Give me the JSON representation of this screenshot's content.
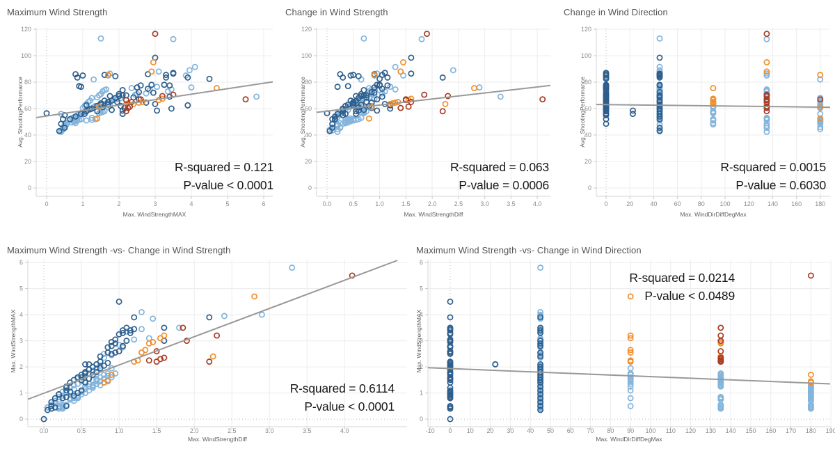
{
  "palette": {
    "lb": "#82B4DC",
    "db": "#2E5E8C",
    "o": "#F28E2B",
    "r": "#A83C24",
    "trend": "#999999",
    "grid": "#ECECEC",
    "axis": "#D4D4D4",
    "tick_mark": "#C9C9C9",
    "tick_text": "#8A8A8A",
    "zero_line": "#B9B9B9"
  },
  "record_fields": [
    "wsmax",
    "wsdiff",
    "dirdiff",
    "perf",
    "color"
  ],
  "records": [
    [
      0,
      0,
      0,
      56.5,
      "db"
    ],
    [
      0.4,
      0.1,
      0,
      48.5,
      "db"
    ],
    [
      0.45,
      0.15,
      0,
      52,
      "db"
    ],
    [
      0.5,
      0.3,
      0,
      55,
      "db"
    ],
    [
      0.8,
      0.25,
      0,
      86,
      "db"
    ],
    [
      0.85,
      0.3,
      0,
      83.5,
      "db"
    ],
    [
      0.9,
      0.4,
      0,
      77,
      "db"
    ],
    [
      0.95,
      0.2,
      0,
      76.5,
      "db"
    ],
    [
      1,
      0.45,
      0,
      85,
      "db"
    ],
    [
      1.05,
      0.35,
      0,
      56,
      "db"
    ],
    [
      1.1,
      0.5,
      0,
      62.5,
      "db"
    ],
    [
      1.2,
      0.3,
      0,
      59.5,
      "db"
    ],
    [
      1.4,
      0.55,
      0,
      58,
      "db"
    ],
    [
      1.5,
      0.5,
      0,
      64,
      "db"
    ],
    [
      1.55,
      0.6,
      0,
      61,
      "db"
    ],
    [
      1.6,
      0.45,
      0,
      66,
      "db"
    ],
    [
      1.7,
      0.65,
      0,
      63,
      "db"
    ],
    [
      1.75,
      0.55,
      0,
      69.5,
      "db"
    ],
    [
      1.8,
      0.7,
      0,
      59,
      "db"
    ],
    [
      1.9,
      0.6,
      0,
      68,
      "db"
    ],
    [
      1.95,
      0.75,
      0,
      65,
      "db"
    ],
    [
      2,
      0.65,
      0,
      71,
      "db"
    ],
    [
      2.05,
      0.8,
      0,
      62,
      "db"
    ],
    [
      2.1,
      0.7,
      0,
      74,
      "db"
    ],
    [
      2.15,
      0.85,
      0,
      60.5,
      "db"
    ],
    [
      2.2,
      0.75,
      0,
      70,
      "db"
    ],
    [
      2.5,
      0.9,
      0,
      76,
      "db"
    ],
    [
      2.55,
      0.95,
      0,
      67,
      "db"
    ],
    [
      2.6,
      1,
      0,
      77.5,
      "db"
    ],
    [
      2.75,
      0.85,
      0,
      64.5,
      "db"
    ],
    [
      2.8,
      1.05,
      0,
      75,
      "db"
    ],
    [
      2.95,
      0.9,
      0,
      72,
      "db"
    ],
    [
      3,
      1.1,
      0,
      63.5,
      "db"
    ],
    [
      3.05,
      0.95,
      0,
      58.5,
      "db"
    ],
    [
      3.25,
      1,
      0,
      78,
      "db"
    ],
    [
      3.3,
      1.15,
      0,
      83.5,
      "db"
    ],
    [
      3.4,
      1.05,
      0,
      69,
      "db"
    ],
    [
      3.45,
      1.2,
      0,
      60,
      "db"
    ],
    [
      3.5,
      1.1,
      0,
      87,
      "db"
    ],
    [
      3.9,
      1.2,
      0,
      62.5,
      "db"
    ],
    [
      4.5,
      1,
      0,
      82.5,
      "db"
    ],
    [
      2.1,
      0.6,
      22.5,
      58.5,
      "db"
    ],
    [
      2.1,
      0.55,
      22.5,
      56,
      "db"
    ],
    [
      5.8,
      3.3,
      45,
      69,
      "lb"
    ],
    [
      1.5,
      0.7,
      45,
      113,
      "lb"
    ],
    [
      4.1,
      1.3,
      45,
      91.5,
      "lb"
    ],
    [
      4,
      2.9,
      45,
      76,
      "lb"
    ],
    [
      3.95,
      2.4,
      45,
      89,
      "lb"
    ],
    [
      3.9,
      2.2,
      45,
      83.5,
      "db"
    ],
    [
      3.85,
      1.45,
      45,
      85,
      "lb"
    ],
    [
      3.5,
      1.6,
      45,
      86.5,
      "db"
    ],
    [
      3.45,
      1.3,
      45,
      74.5,
      "lb"
    ],
    [
      3.4,
      1.15,
      45,
      77.5,
      "db"
    ],
    [
      3.35,
      1.1,
      45,
      73,
      "lb"
    ],
    [
      3.3,
      1.05,
      45,
      85.5,
      "db"
    ],
    [
      3.1,
      1.4,
      45,
      88,
      "lb"
    ],
    [
      3.05,
      1.2,
      45,
      76.5,
      "lb"
    ],
    [
      3,
      1.6,
      45,
      98.5,
      "db"
    ],
    [
      2.9,
      0.95,
      45,
      78,
      "db"
    ],
    [
      2.85,
      1,
      45,
      74,
      "lb"
    ],
    [
      2.8,
      0.9,
      45,
      86,
      "db"
    ],
    [
      2.75,
      1.05,
      45,
      71.5,
      "lb"
    ],
    [
      2.55,
      0.85,
      45,
      72.5,
      "db"
    ],
    [
      2.5,
      0.8,
      45,
      71,
      "lb"
    ],
    [
      2.45,
      0.9,
      45,
      70.5,
      "lb"
    ],
    [
      2.4,
      0.75,
      45,
      68.5,
      "db"
    ],
    [
      2.35,
      0.8,
      45,
      75.5,
      "lb"
    ],
    [
      2.1,
      0.7,
      45,
      70,
      "db"
    ],
    [
      2.05,
      0.75,
      45,
      68,
      "lb"
    ],
    [
      2,
      0.65,
      45,
      69.5,
      "db"
    ],
    [
      1.95,
      0.7,
      45,
      67.5,
      "lb"
    ],
    [
      1.9,
      0.6,
      45,
      84.5,
      "db"
    ],
    [
      1.85,
      0.65,
      45,
      67,
      "lb"
    ],
    [
      1.8,
      0.55,
      45,
      66,
      "db"
    ],
    [
      1.75,
      0.6,
      45,
      65.5,
      "lb"
    ],
    [
      1.7,
      0.5,
      45,
      65,
      "db"
    ],
    [
      1.65,
      0.55,
      45,
      64,
      "lb"
    ],
    [
      1.6,
      0.5,
      45,
      85.5,
      "db"
    ],
    [
      1.55,
      0.45,
      45,
      63.5,
      "lb"
    ],
    [
      1.5,
      0.4,
      45,
      63,
      "db"
    ],
    [
      1.45,
      0.5,
      45,
      62.5,
      "lb"
    ],
    [
      1.4,
      0.35,
      45,
      62,
      "db"
    ],
    [
      1.35,
      0.45,
      45,
      61.5,
      "lb"
    ],
    [
      1.3,
      0.4,
      45,
      61,
      "lb"
    ],
    [
      1.25,
      0.3,
      45,
      60,
      "db"
    ],
    [
      1.2,
      0.35,
      45,
      59.5,
      "lb"
    ],
    [
      1.15,
      0.4,
      45,
      59,
      "lb"
    ],
    [
      1.1,
      0.3,
      45,
      58,
      "db"
    ],
    [
      1.05,
      0.25,
      45,
      57.5,
      "lb"
    ],
    [
      1,
      0.3,
      45,
      57,
      "lb"
    ],
    [
      0.95,
      0.2,
      45,
      56,
      "db"
    ],
    [
      0.9,
      0.25,
      45,
      55.5,
      "lb"
    ],
    [
      0.85,
      0.2,
      45,
      55,
      "lb"
    ],
    [
      0.8,
      0.15,
      45,
      54,
      "db"
    ],
    [
      0.75,
      0.2,
      45,
      53.5,
      "lb"
    ],
    [
      0.7,
      0.15,
      45,
      53,
      "lb"
    ],
    [
      0.65,
      0.1,
      45,
      52,
      "db"
    ],
    [
      0.6,
      0.15,
      45,
      51,
      "lb"
    ],
    [
      0.55,
      0.1,
      45,
      48,
      "lb"
    ],
    [
      0.5,
      0.1,
      45,
      45.5,
      "db"
    ],
    [
      0.45,
      0.05,
      45,
      44,
      "lb"
    ],
    [
      0.4,
      0.1,
      45,
      43.5,
      "lb"
    ],
    [
      0.35,
      0.05,
      45,
      43,
      "db"
    ],
    [
      4.7,
      2.8,
      90,
      75.5,
      "o"
    ],
    [
      3.2,
      1.6,
      90,
      67.5,
      "o"
    ],
    [
      3.1,
      1.55,
      90,
      66.5,
      "o"
    ],
    [
      2.65,
      1.35,
      90,
      65,
      "o"
    ],
    [
      2.55,
      1.3,
      90,
      64.5,
      "o"
    ],
    [
      2.25,
      1.25,
      90,
      64,
      "o"
    ],
    [
      2.2,
      1.2,
      90,
      63.5,
      "o"
    ],
    [
      1.95,
      0.9,
      90,
      67,
      "lb"
    ],
    [
      1.75,
      0.85,
      90,
      62,
      "lb"
    ],
    [
      1.7,
      0.8,
      90,
      61,
      "lb"
    ],
    [
      1.6,
      0.75,
      90,
      58,
      "lb"
    ],
    [
      1.55,
      0.7,
      90,
      57.5,
      "lb"
    ],
    [
      1.5,
      0.65,
      90,
      57,
      "lb"
    ],
    [
      1.45,
      0.7,
      90,
      56.5,
      "lb"
    ],
    [
      1.35,
      0.6,
      90,
      52,
      "lb"
    ],
    [
      1.25,
      0.55,
      90,
      51.5,
      "lb"
    ],
    [
      1.1,
      0.5,
      90,
      51,
      "lb"
    ],
    [
      0.8,
      0.35,
      90,
      49,
      "lb"
    ],
    [
      0.5,
      0.2,
      90,
      48,
      "lb"
    ],
    [
      3,
      1.9,
      135,
      116.5,
      "r"
    ],
    [
      3.5,
      1.8,
      135,
      112.5,
      "lb"
    ],
    [
      2.95,
      1.45,
      135,
      95,
      "o"
    ],
    [
      3.5,
      1.85,
      135,
      70.5,
      "r"
    ],
    [
      3.2,
      2.3,
      135,
      69.5,
      "r"
    ],
    [
      2.6,
      1.5,
      135,
      67,
      "r"
    ],
    [
      2.35,
      1.6,
      135,
      65,
      "r"
    ],
    [
      2.3,
      1.55,
      135,
      61.5,
      "r"
    ],
    [
      2.25,
      1.4,
      135,
      60.5,
      "r"
    ],
    [
      2.2,
      2.2,
      135,
      58,
      "r"
    ],
    [
      2.2,
      1.5,
      135,
      66.5,
      "r"
    ],
    [
      2.9,
      1.4,
      135,
      88,
      "o"
    ],
    [
      2.4,
      2.25,
      135,
      63.5,
      "o"
    ],
    [
      1.75,
      0.95,
      135,
      86.5,
      "lb"
    ],
    [
      1.7,
      0.9,
      135,
      85,
      "lb"
    ],
    [
      1.65,
      0.85,
      135,
      74.5,
      "lb"
    ],
    [
      1.6,
      0.9,
      135,
      74,
      "lb"
    ],
    [
      1.55,
      0.8,
      135,
      73,
      "lb"
    ],
    [
      1.5,
      0.85,
      135,
      71,
      "lb"
    ],
    [
      1.45,
      0.75,
      135,
      70,
      "lb"
    ],
    [
      1.4,
      0.8,
      135,
      68.5,
      "lb"
    ],
    [
      1.35,
      0.7,
      135,
      62,
      "lb"
    ],
    [
      1.3,
      0.75,
      135,
      61,
      "lb"
    ],
    [
      1.25,
      0.65,
      135,
      53,
      "lb"
    ],
    [
      0.85,
      0.45,
      135,
      52.5,
      "lb"
    ],
    [
      0.8,
      0.4,
      135,
      52,
      "lb"
    ],
    [
      0.75,
      0.35,
      135,
      51.5,
      "lb"
    ],
    [
      0.55,
      0.25,
      135,
      49,
      "lb"
    ],
    [
      0.5,
      0.2,
      135,
      47,
      "lb"
    ],
    [
      0.45,
      0.25,
      135,
      45.5,
      "lb"
    ],
    [
      0.4,
      0.2,
      135,
      42.5,
      "lb"
    ],
    [
      5.5,
      4.1,
      180,
      67,
      "r"
    ],
    [
      1.7,
      0.9,
      180,
      85.5,
      "o"
    ],
    [
      1.45,
      0.85,
      180,
      61,
      "o"
    ],
    [
      1.4,
      0.8,
      180,
      52.5,
      "o"
    ],
    [
      1.3,
      0.65,
      180,
      82,
      "lb"
    ],
    [
      1.25,
      0.6,
      180,
      68,
      "lb"
    ],
    [
      1.2,
      0.65,
      180,
      66,
      "lb"
    ],
    [
      1.15,
      0.55,
      180,
      65,
      "lb"
    ],
    [
      1.1,
      0.6,
      180,
      63.5,
      "lb"
    ],
    [
      1.05,
      0.5,
      180,
      62,
      "lb"
    ],
    [
      1,
      0.55,
      180,
      60.5,
      "lb"
    ],
    [
      0.95,
      0.5,
      180,
      52,
      "lb"
    ],
    [
      0.9,
      0.45,
      180,
      51.5,
      "lb"
    ],
    [
      0.85,
      0.4,
      180,
      51,
      "lb"
    ],
    [
      0.8,
      0.45,
      180,
      50.5,
      "lb"
    ],
    [
      0.75,
      0.35,
      180,
      50,
      "lb"
    ],
    [
      0.7,
      0.4,
      180,
      49.5,
      "lb"
    ],
    [
      0.55,
      0.3,
      180,
      48.5,
      "lb"
    ],
    [
      0.5,
      0.25,
      180,
      46,
      "lb"
    ],
    [
      0.45,
      0.2,
      180,
      44.5,
      "lb"
    ],
    [
      0.4,
      0.25,
      180,
      56,
      "lb"
    ]
  ],
  "chart_data": [
    {
      "type": "scatter",
      "title": "Maximum Wind Strength",
      "xlabel": "Max. WindStrengthMAX",
      "ylabel": "Avg. ShootingPerformance",
      "x_field": "wsmax",
      "y_field": "perf",
      "xlim": [
        -0.288,
        6.25
      ],
      "ylim": [
        -6.3,
        121.05
      ],
      "xticks": {
        "values": [
          0,
          1,
          2,
          3,
          4,
          5,
          6
        ],
        "labels": [
          "0",
          "1",
          "2",
          "3",
          "4",
          "5",
          "6"
        ]
      },
      "yticks": {
        "values": [
          0,
          20,
          40,
          60,
          80,
          100,
          120
        ],
        "labels": [
          "0",
          "20",
          "40",
          "60",
          "80",
          "100",
          "120"
        ]
      },
      "grid": true,
      "zero_lines": {
        "x": true,
        "y": false
      },
      "trend": {
        "x1": -0.288,
        "y1": 53.2,
        "x2": 6.25,
        "y2": 80.2
      },
      "annotation": {
        "r_squared": "0.121",
        "p_value": "0.0001",
        "line1": "R-squared = 0.121",
        "line2": "P-value < 0.0001"
      }
    },
    {
      "type": "scatter",
      "title": "Change in Wind Strength",
      "xlabel": "Max. WindStrengthDiff",
      "ylabel": "Avg. ShootingPerformance",
      "x_field": "wsdiff",
      "y_field": "perf",
      "xlim": [
        -0.199,
        4.25
      ],
      "ylim": [
        -6.3,
        121.05
      ],
      "xticks": {
        "values": [
          0,
          0.5,
          1,
          1.5,
          2,
          2.5,
          3,
          3.5,
          4
        ],
        "labels": [
          "0.0",
          "0.5",
          "1.0",
          "1.5",
          "2.0",
          "2.5",
          "3.0",
          "3.5",
          "4.0"
        ]
      },
      "yticks": {
        "values": [
          0,
          20,
          40,
          60,
          80,
          100,
          120
        ],
        "labels": [
          "0",
          "20",
          "40",
          "60",
          "80",
          "100",
          "120"
        ]
      },
      "grid": true,
      "zero_lines": {
        "x": true,
        "y": false
      },
      "trend": {
        "x1": -0.199,
        "y1": 57.2,
        "x2": 4.25,
        "y2": 77.5
      },
      "annotation": {
        "r_squared": "0.063",
        "p_value": "0.0006",
        "line1": "R-squared = 0.063",
        "line2": "P-value = 0.0006"
      }
    },
    {
      "type": "scatter",
      "title": "Change in Wind Direction",
      "xlabel": "Max. WindDirDiffDegMax",
      "ylabel": "Avg. ShootingPerformance",
      "x_field": "dirdiff",
      "y_field": "perf",
      "xlim": [
        -8.2,
        188.3
      ],
      "ylim": [
        -6.3,
        121.05
      ],
      "xticks": {
        "values": [
          0,
          20,
          40,
          60,
          80,
          100,
          120,
          140,
          160,
          180
        ],
        "labels": [
          "0",
          "20",
          "40",
          "60",
          "80",
          "100",
          "120",
          "140",
          "160",
          "180"
        ]
      },
      "yticks": {
        "values": [
          0,
          20,
          40,
          60,
          80,
          100,
          120
        ],
        "labels": [
          "0",
          "20",
          "40",
          "60",
          "80",
          "100",
          "120"
        ]
      },
      "grid": true,
      "zero_lines": {
        "x": true,
        "y": false
      },
      "trend": {
        "x1": -8.2,
        "y1": 63.1,
        "x2": 188.3,
        "y2": 61.0
      },
      "annotation": {
        "r_squared": "0.0015",
        "p_value": "0.6030",
        "line1": "R-squared = 0.0015",
        "line2": "P-value = 0.6030"
      }
    },
    {
      "type": "scatter",
      "title": "Maximum Wind Strength -vs- Change in Wind Strength",
      "xlabel": "Max. WindStrengthDiff",
      "ylabel": "Max. WindStrengthMAX",
      "x_field": "wsdiff",
      "y_field": "wsmax",
      "xlim": [
        -0.213,
        4.83
      ],
      "ylim": [
        -0.29,
        6.11
      ],
      "xticks": {
        "values": [
          0,
          0.5,
          1,
          1.5,
          2,
          2.5,
          3,
          3.5,
          4
        ],
        "labels": [
          "0.0",
          "0.5",
          "1.0",
          "1.5",
          "2.0",
          "2.5",
          "3.0",
          "3.5",
          "4.0"
        ]
      },
      "yticks": {
        "values": [
          0,
          1,
          2,
          3,
          4,
          5,
          6
        ],
        "labels": [
          "0",
          "1",
          "2",
          "3",
          "4",
          "5",
          "6"
        ]
      },
      "grid": true,
      "zero_lines": {
        "x": true,
        "y": true
      },
      "trend": {
        "x1": -0.213,
        "y1": 0.76,
        "x2": 4.7,
        "y2": 6.08
      },
      "annotation": {
        "r_squared": "0.6114",
        "p_value": "0.0001",
        "line1": "R-squared = 0.6114",
        "line2": "P-value < 0.0001"
      }
    },
    {
      "type": "scatter",
      "title": "Maximum Wind Strength -vs- Change in Wind Direction",
      "xlabel": "Max. WindDirDiffDegMax",
      "ylabel": "Max. WindStrengthMAX",
      "x_field": "dirdiff",
      "y_field": "wsmax",
      "xlim": [
        -11.1,
        189.6
      ],
      "ylim": [
        -0.29,
        6.11
      ],
      "xticks": {
        "values": [
          -10,
          0,
          10,
          20,
          30,
          40,
          50,
          60,
          70,
          80,
          90,
          100,
          110,
          120,
          130,
          140,
          150,
          160,
          170,
          180,
          190
        ],
        "labels": [
          "-10",
          "0",
          "10",
          "20",
          "30",
          "40",
          "50",
          "60",
          "70",
          "80",
          "90",
          "100",
          "110",
          "120",
          "130",
          "140",
          "150",
          "160",
          "170",
          "180",
          "190"
        ]
      },
      "yticks": {
        "values": [
          0,
          1,
          2,
          3,
          4,
          5,
          6
        ],
        "labels": [
          "0",
          "1",
          "2",
          "3",
          "4",
          "5",
          "6"
        ]
      },
      "grid": true,
      "zero_lines": {
        "x": true,
        "y": true
      },
      "trend": {
        "x1": -11.1,
        "y1": 1.97,
        "x2": 189.6,
        "y2": 1.35
      },
      "annotation": {
        "r_squared": "0.0214",
        "p_value": "0.0489",
        "line1": "R-squared = 0.0214",
        "line2": "P-value < 0.0489"
      }
    }
  ]
}
